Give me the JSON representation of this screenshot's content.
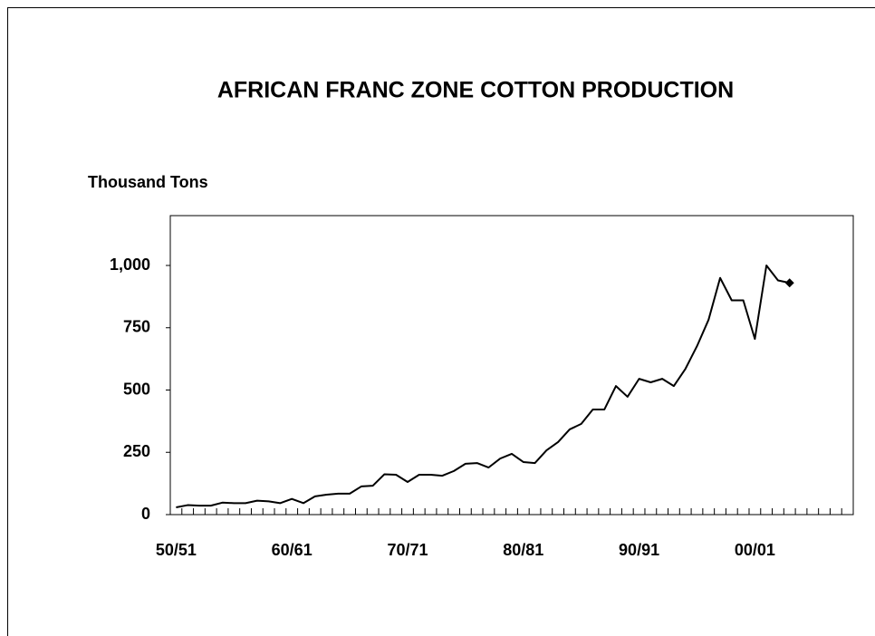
{
  "chart_data": {
    "type": "line",
    "title": "AFRICAN FRANC ZONE COTTON PRODUCTION",
    "y_label": "Thousand Tons",
    "categories": [
      "50/51",
      null,
      null,
      null,
      null,
      null,
      null,
      null,
      null,
      null,
      "60/61",
      null,
      null,
      null,
      null,
      null,
      null,
      null,
      null,
      null,
      "70/71",
      null,
      null,
      null,
      null,
      null,
      null,
      null,
      null,
      null,
      "80/81",
      null,
      null,
      null,
      null,
      null,
      null,
      null,
      null,
      null,
      "90/91",
      null,
      null,
      null,
      null,
      null,
      null,
      null,
      null,
      null,
      "00/01",
      null,
      null,
      null,
      null,
      null,
      null,
      null,
      null
    ],
    "values": [
      29,
      38,
      36,
      36,
      48,
      46,
      46,
      56,
      53,
      46,
      63,
      46,
      73,
      80,
      84,
      84,
      113,
      116,
      162,
      160,
      131,
      160,
      160,
      156,
      175,
      204,
      207,
      189,
      225,
      244,
      211,
      207,
      258,
      291,
      342,
      364,
      422,
      422,
      516,
      473,
      545,
      531,
      545,
      516,
      585,
      676,
      782,
      950,
      860,
      860,
      705,
      1000,
      940,
      930,
      null,
      null,
      null,
      null,
      null
    ],
    "color": "#000000",
    "ylim": [
      0,
      1200
    ],
    "yticks": [
      0,
      250,
      500,
      750,
      {
        "value": 1000,
        "label": "1,000"
      }
    ]
  }
}
